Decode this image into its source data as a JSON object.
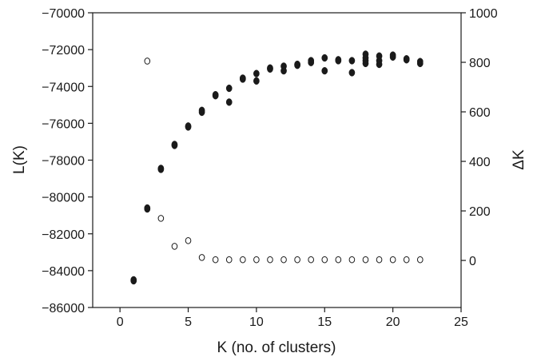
{
  "chart_data": {
    "type": "scatter",
    "title": "",
    "xlabel": "K (no. of clusters)",
    "ylabel": "L(K)",
    "y2label": "ΔK",
    "xlim": [
      -2,
      25
    ],
    "ylim": [
      -86000,
      -70000
    ],
    "y2lim": [
      -190,
      1000
    ],
    "xticks": [
      0,
      5,
      10,
      15,
      20,
      25
    ],
    "xtick_labels": [
      "0",
      "5",
      "10",
      "15",
      "20",
      "25"
    ],
    "yticks": [
      -86000,
      -84000,
      -82000,
      -80000,
      -78000,
      -76000,
      -74000,
      -72000,
      -70000
    ],
    "ytick_labels": [
      "−86000",
      "−84000",
      "−82000",
      "−80000",
      "−78000",
      "−76000",
      "−74000",
      "−72000",
      "−70000"
    ],
    "y2ticks": [
      0,
      200,
      400,
      600,
      800,
      1000
    ],
    "y2tick_labels": [
      "0",
      "200",
      "400",
      "600",
      "800",
      "1000"
    ],
    "grid": false,
    "legend": "none",
    "colors": {
      "axis": "#1a1a1a",
      "marker": "#1a1a1a",
      "background": "#ffffff"
    },
    "series": [
      {
        "axis": "left",
        "marker": "filled-circle",
        "points": [
          [
            1,
            -84550
          ],
          [
            1,
            -84500
          ],
          [
            2,
            -80650
          ],
          [
            2,
            -80600
          ],
          [
            3,
            -78500
          ],
          [
            3,
            -78450
          ],
          [
            4,
            -77200
          ],
          [
            4,
            -77150
          ],
          [
            5,
            -76200
          ],
          [
            5,
            -76150
          ],
          [
            6,
            -75400
          ],
          [
            6,
            -75300
          ],
          [
            7,
            -74500
          ],
          [
            7,
            -74450
          ],
          [
            8,
            -74850
          ],
          [
            8,
            -74100
          ],
          [
            9,
            -73600
          ],
          [
            9,
            -73550
          ],
          [
            10,
            -73700
          ],
          [
            10,
            -73300
          ],
          [
            11,
            -73050
          ],
          [
            11,
            -73000
          ],
          [
            12,
            -73150
          ],
          [
            12,
            -72900
          ],
          [
            13,
            -72850
          ],
          [
            13,
            -72800
          ],
          [
            14,
            -72700
          ],
          [
            14,
            -72600
          ],
          [
            15,
            -73150
          ],
          [
            15,
            -72450
          ],
          [
            16,
            -72600
          ],
          [
            16,
            -72550
          ],
          [
            17,
            -73250
          ],
          [
            17,
            -72600
          ],
          [
            18,
            -72750
          ],
          [
            18,
            -72600
          ],
          [
            18,
            -72450
          ],
          [
            18,
            -72250
          ],
          [
            19,
            -72800
          ],
          [
            19,
            -72600
          ],
          [
            19,
            -72350
          ],
          [
            20,
            -72400
          ],
          [
            20,
            -72300
          ],
          [
            21,
            -72550
          ],
          [
            21,
            -72500
          ],
          [
            22,
            -72750
          ],
          [
            22,
            -72650
          ]
        ]
      },
      {
        "axis": "right",
        "marker": "open-circle",
        "points": [
          [
            2,
            805
          ],
          [
            3,
            170
          ],
          [
            4,
            57
          ],
          [
            5,
            80
          ],
          [
            6,
            12
          ],
          [
            7,
            3
          ],
          [
            8,
            3
          ],
          [
            9,
            3
          ],
          [
            10,
            3
          ],
          [
            11,
            3
          ],
          [
            12,
            3
          ],
          [
            13,
            3
          ],
          [
            14,
            3
          ],
          [
            15,
            3
          ],
          [
            16,
            3
          ],
          [
            17,
            3
          ],
          [
            18,
            3
          ],
          [
            19,
            3
          ],
          [
            20,
            3
          ],
          [
            21,
            3
          ],
          [
            22,
            3
          ]
        ]
      }
    ]
  }
}
